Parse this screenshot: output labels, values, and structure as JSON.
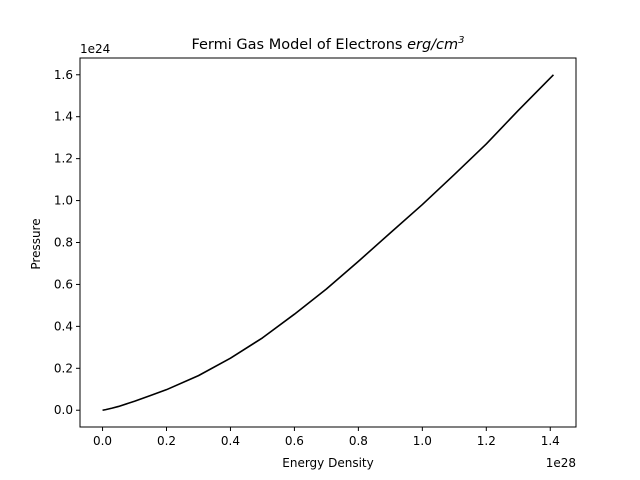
{
  "chart_data": {
    "type": "line",
    "title": "Fermi Gas Model of Electrons ",
    "title_math": "erg/cm",
    "title_math_sup": "3",
    "xlabel": "Energy Density",
    "ylabel": "Pressure",
    "x_offset_label": "1e28",
    "y_offset_label": "1e24",
    "x_unit_scale": 1e+28,
    "y_unit_scale": 1e+24,
    "xlim": [
      -0.0705,
      1.4805
    ],
    "ylim": [
      -0.08,
      1.68
    ],
    "x_ticks": [
      0.0,
      0.2,
      0.4,
      0.6,
      0.8,
      1.0,
      1.2,
      1.4
    ],
    "x_tick_labels": [
      "0.0",
      "0.2",
      "0.4",
      "0.6",
      "0.8",
      "1.0",
      "1.2",
      "1.4"
    ],
    "y_ticks": [
      0.0,
      0.2,
      0.4,
      0.6,
      0.8,
      1.0,
      1.2,
      1.4,
      1.6
    ],
    "y_tick_labels": [
      "0.0",
      "0.2",
      "0.4",
      "0.6",
      "0.8",
      "1.0",
      "1.2",
      "1.4",
      "1.6"
    ],
    "grid": false,
    "line_color": "#000000",
    "series": [
      {
        "x": [
          0.0,
          0.01,
          0.03,
          0.05,
          0.1,
          0.15,
          0.2,
          0.3,
          0.4,
          0.5,
          0.6,
          0.7,
          0.8,
          0.9,
          1.0,
          1.1,
          1.2,
          1.3,
          1.41
        ],
        "y": [
          0.0,
          0.003,
          0.01,
          0.018,
          0.043,
          0.07,
          0.098,
          0.165,
          0.248,
          0.345,
          0.458,
          0.578,
          0.71,
          0.846,
          0.981,
          1.124,
          1.27,
          1.43,
          1.6
        ]
      }
    ]
  }
}
